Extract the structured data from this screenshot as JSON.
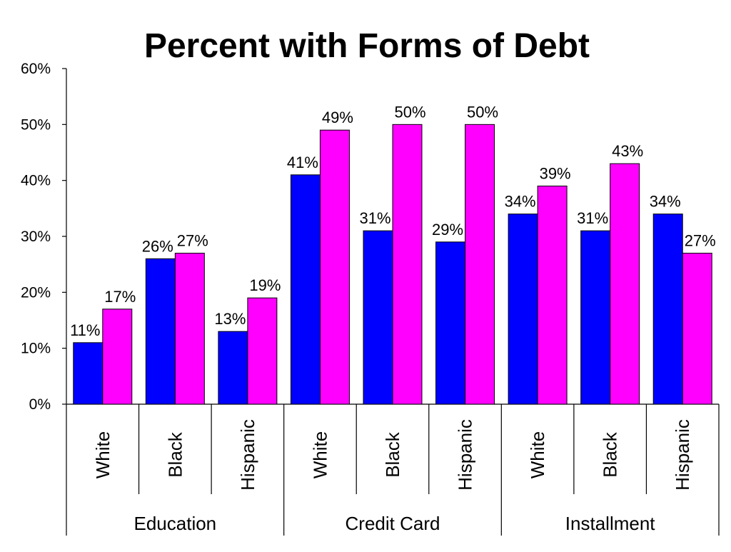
{
  "chart_data": {
    "type": "bar",
    "title": "Percent with Forms of Debt",
    "xlabel": "",
    "ylabel": "",
    "ylim": [
      0,
      60
    ],
    "y_ticks": [
      "0%",
      "10%",
      "20%",
      "30%",
      "40%",
      "50%",
      "60%"
    ],
    "grid": false,
    "legend": "none",
    "groups": [
      "Education",
      "Credit Card",
      "Installment"
    ],
    "categories": [
      "White",
      "Black",
      "Hispanic",
      "White",
      "Black",
      "Hispanic",
      "White",
      "Black",
      "Hispanic"
    ],
    "series": [
      {
        "color": "#0000ff",
        "values": [
          11,
          26,
          13,
          41,
          31,
          29,
          34,
          31,
          34
        ],
        "labels": [
          "11%",
          "26%",
          "13%",
          "41%",
          "31%",
          "29%",
          "34%",
          "31%",
          "34%"
        ]
      },
      {
        "color": "#ff00ff",
        "values": [
          17,
          27,
          19,
          49,
          50,
          50,
          39,
          43,
          27
        ],
        "labels": [
          "17%",
          "27%",
          "19%",
          "49%",
          "50%",
          "50%",
          "39%",
          "43%",
          "27%"
        ]
      }
    ]
  }
}
